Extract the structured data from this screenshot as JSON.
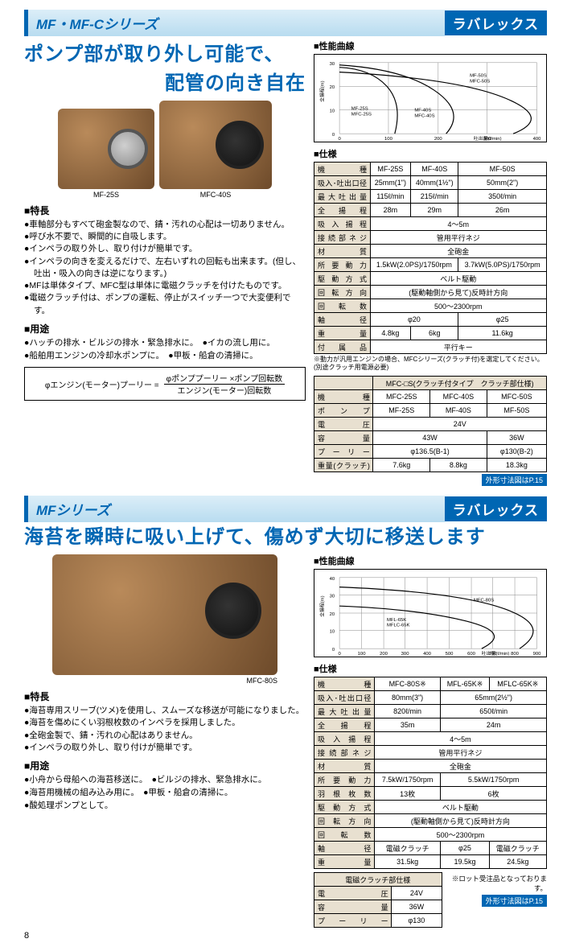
{
  "page_number": "8",
  "section1": {
    "series_title": "MF・MF-Cシリーズ",
    "brand": "ラバレックス",
    "headline1": "ポンプ部が取り外し可能で、",
    "headline2": "配管の向き自在",
    "img_labels": {
      "left": "MF-25S",
      "right": "MFC-40S"
    },
    "features_head": "特長",
    "features": [
      "車軸部分もすべて砲金製なので、錆・汚れの心配は一切ありません。",
      "呼び水不要で、瞬間的に自吸します。",
      "インペラの取り外し、取り付けが簡単です。",
      "インペラの向きを変えるだけで、左右いずれの回転も出来ます。(但し、吐出・吸入の向きは逆になります。)",
      "MFは単体タイプ、MFC型は単体に電磁クラッチを付けたものです。",
      "電磁クラッチ付は、ポンプの運転、停止がスイッチ一つで大変便利です。"
    ],
    "uses_head": "用途",
    "uses": [
      "ハッチの排水・ビルジの排水・緊急排水に。",
      "イカの流し用に。",
      "船舶用エンジンの冷却水ポンプに。",
      "甲板・船倉の清掃に。"
    ],
    "formula": {
      "lhs": "φエンジン(モーター)プーリー =",
      "num": "φポンププーリー ×ポンプ回転数",
      "den": "エンジン(モーター)回転数"
    },
    "chart": {
      "title": "性能曲線",
      "ylabel": "全揚程(m)",
      "xlabel": "吐出量(ℓ/min)",
      "ylim": [
        0,
        30
      ],
      "yticks": [
        0,
        10,
        20,
        30
      ],
      "xlim": [
        0,
        400
      ],
      "xticks": [
        0,
        100,
        200,
        300,
        400
      ],
      "series_labels": [
        "MF-25S",
        "MFC-25S",
        "MF-40S",
        "MFC-40S",
        "MF-50S",
        "MFC-50S"
      ],
      "colors": {
        "line": "#000000",
        "grid": "#888888",
        "bg": "#ffffff"
      }
    },
    "spec1": {
      "title": "仕様",
      "cols": [
        "MF-25S",
        "MF-40S",
        "MF-50S"
      ],
      "rows": [
        [
          "機　　種",
          "MF-25S",
          "MF-40S",
          "MF-50S"
        ],
        [
          "吸入･吐出口径",
          "25mm(1\")",
          "40mm(1½\")",
          "50mm(2\")"
        ],
        [
          "最大吐出量",
          "115ℓ/min",
          "215ℓ/min",
          "350ℓ/min"
        ],
        [
          "全 揚 程",
          "28m",
          "29m",
          "26m"
        ],
        [
          "吸入揚程",
          "4～5m",
          "",
          ""
        ],
        [
          "接続部ネジ",
          "管用平行ネジ",
          "",
          ""
        ],
        [
          "材　　質",
          "全砲金",
          "",
          ""
        ],
        [
          "所要動力",
          "1.5kW(2.0PS)/1750rpm",
          "",
          "3.7kW(5.0PS)/1750rpm"
        ],
        [
          "駆動方式",
          "ベルト駆動",
          "",
          ""
        ],
        [
          "回転方向",
          "(駆動軸側から見て)反時計方向",
          "",
          ""
        ],
        [
          "回 転 数",
          "500～2300rpm",
          "",
          ""
        ],
        [
          "軸　　径",
          "φ20",
          "",
          "φ25"
        ],
        [
          "重　　量",
          "4.8kg",
          "6kg",
          "11.6kg"
        ],
        [
          "付 属 品",
          "平行キー",
          "",
          ""
        ]
      ],
      "footnote": "※動力が汎用エンジンの場合、MFCシリーズ(クラッチ付)を選定してください。(別途クラッチ用電源必要)"
    },
    "spec2": {
      "header_row": [
        "",
        "MFC-□S(クラッチ付タイプ　クラッチ部仕様)"
      ],
      "rows": [
        [
          "機　　種",
          "MFC-25S",
          "MFC-40S",
          "MFC-50S"
        ],
        [
          "ポ ン プ",
          "MF-25S",
          "MF-40S",
          "MF-50S"
        ],
        [
          "電　　圧",
          "24V",
          "",
          ""
        ],
        [
          "容　　量",
          "43W",
          "",
          "36W"
        ],
        [
          "プーリー",
          "φ136.5(B-1)",
          "",
          "φ130(B-2)"
        ],
        [
          "重量(クラッチ)",
          "7.6kg",
          "8.8kg",
          "18.3kg"
        ]
      ],
      "outline_ref": "外形寸法図はP.15"
    }
  },
  "section2": {
    "series_title": "MFシリーズ",
    "brand": "ラバレックス",
    "headline": "海苔を瞬時に吸い上げて、傷めず大切に移送します",
    "img_label": "MFC-80S",
    "features_head": "特長",
    "features": [
      "海苔専用スリーブ(ツメ)を使用し、スムーズな移送が可能になりました。",
      "海苔を傷めにくい羽根枚数のインペラを採用しました。",
      "全砲金製で、錆・汚れの心配はありません。",
      "インペラの取り外し、取り付けが簡単です。"
    ],
    "uses_head": "用途",
    "uses": [
      "小舟から母船への海苔移送に。",
      "ビルジの排水、緊急排水に。",
      "海苔用機械の組み込み用に。",
      "甲板・船倉の清掃に。",
      "酸処理ポンプとして。"
    ],
    "chart": {
      "title": "性能曲線",
      "ylabel": "全揚程(m)",
      "xlabel": "吐出量(ℓ/min)",
      "ylim": [
        0,
        40
      ],
      "yticks": [
        0,
        10,
        20,
        30,
        40
      ],
      "xlim": [
        0,
        900
      ],
      "xticks": [
        0,
        100,
        200,
        300,
        400,
        500,
        600,
        700,
        800,
        900
      ],
      "series_labels": [
        "MFL-65K",
        "MFLC-65K",
        "MFC-80S"
      ],
      "colors": {
        "line": "#000000",
        "grid": "#888888",
        "bg": "#ffffff"
      }
    },
    "spec1": {
      "title": "仕様",
      "rows": [
        [
          "機　　種",
          "MFC-80S※",
          "MFL-65K※",
          "MFLC-65K※"
        ],
        [
          "吸入･吐出口径",
          "80mm(3\")",
          "65mm(2½\")",
          ""
        ],
        [
          "最大吐出量",
          "820ℓ/min",
          "650ℓ/min",
          ""
        ],
        [
          "全 揚 程",
          "35m",
          "24m",
          ""
        ],
        [
          "吸入揚程",
          "4～5m",
          "",
          ""
        ],
        [
          "接続部ネジ",
          "管用平行ネジ",
          "",
          ""
        ],
        [
          "材　　質",
          "全砲金",
          "",
          ""
        ],
        [
          "所要動力",
          "7.5kW/1750rpm",
          "5.5kW/1750rpm",
          ""
        ],
        [
          "羽根枚数",
          "13枚",
          "6枚",
          ""
        ],
        [
          "駆動方式",
          "ベルト駆動",
          "",
          ""
        ],
        [
          "回転方向",
          "(駆動軸側から見て)反時計方向",
          "",
          ""
        ],
        [
          "回 転 数",
          "500～2300rpm",
          "",
          ""
        ],
        [
          "軸　　径",
          "電磁クラッチ",
          "φ25",
          "電磁クラッチ"
        ],
        [
          "重　　量",
          "31.5kg",
          "19.5kg",
          "24.5kg"
        ]
      ]
    },
    "spec2": {
      "header": "電磁クラッチ部仕様",
      "rows": [
        [
          "電　　圧",
          "24V"
        ],
        [
          "容　　量",
          "36W"
        ],
        [
          "プーリー",
          "φ130"
        ]
      ],
      "lot_note": "※ロット受注品となっております。",
      "outline_ref": "外形寸法図はP.15"
    }
  }
}
